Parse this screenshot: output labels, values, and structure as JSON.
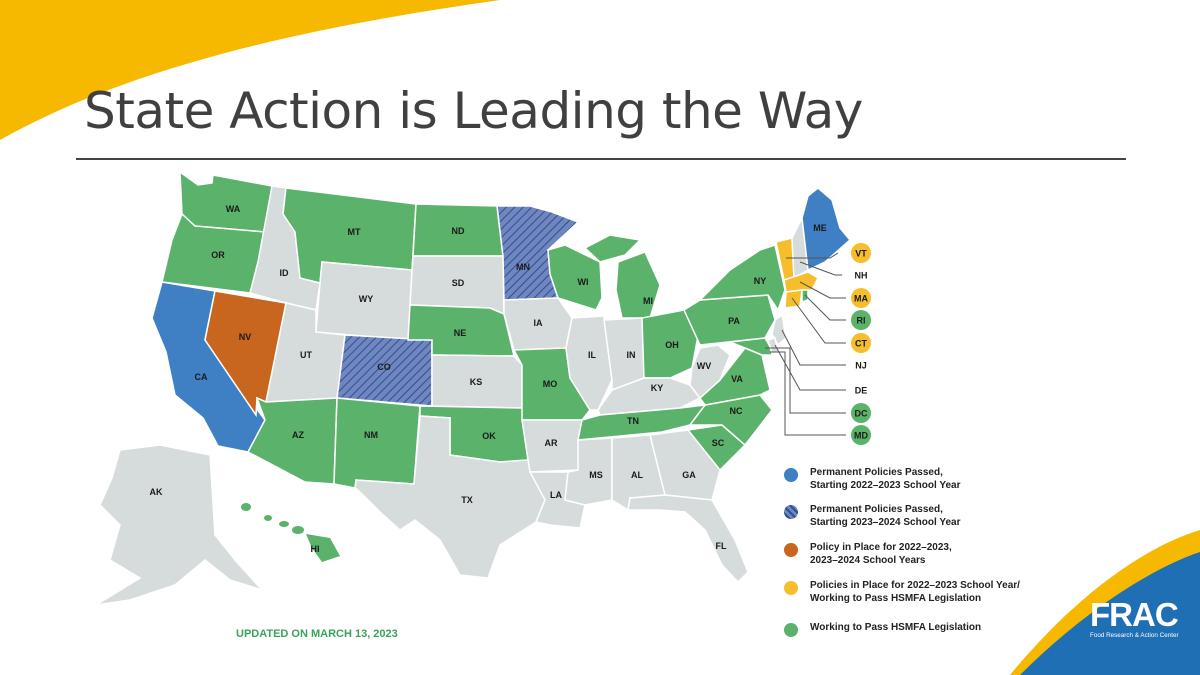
{
  "title": "State Action is Leading the Way",
  "updated": "UPDATED ON MARCH 13, 2023",
  "colors": {
    "blue": "#3f7fc4",
    "hatched": "#6f86bf",
    "orange": "#c8661f",
    "yellow": "#f6bd2c",
    "green": "#5bb26a",
    "gray": "#d6dcdb",
    "accent_yellow": "#f7b800",
    "accent_blue": "#1f6fb5"
  },
  "legend": [
    {
      "color": "blue",
      "line1": "Permanent Policies Passed,",
      "line2": "Starting 2022–2023 School Year"
    },
    {
      "color": "hatched",
      "line1": "Permanent Policies Passed,",
      "line2": "Starting 2023–2024 School Year"
    },
    {
      "color": "orange",
      "line1": "Policy in Place for 2022–2023,",
      "line2": "2023–2024 School Years"
    },
    {
      "color": "yellow",
      "line1": "Policies in Place for 2022–2023 School Year/",
      "line2": "Working to Pass HSMFA Legislation"
    },
    {
      "color": "green",
      "line1": "Working to Pass HSMFA Legislation",
      "line2": ""
    }
  ],
  "states": {
    "WA": "WA",
    "OR": "OR",
    "CA": "CA",
    "NV": "NV",
    "ID": "ID",
    "MT": "MT",
    "WY": "WY",
    "UT": "UT",
    "AZ": "AZ",
    "CO": "CO",
    "NM": "NM",
    "ND": "ND",
    "SD": "SD",
    "NE": "NE",
    "KS": "KS",
    "OK": "OK",
    "TX": "TX",
    "MN": "MN",
    "IA": "IA",
    "MO": "MO",
    "AR": "AR",
    "LA": "LA",
    "WI": "WI",
    "IL": "IL",
    "MI": "MI",
    "IN": "IN",
    "OH": "OH",
    "KY": "KY",
    "TN": "TN",
    "MS": "MS",
    "AL": "AL",
    "GA": "GA",
    "FL": "FL",
    "SC": "SC",
    "NC": "NC",
    "VA": "VA",
    "WV": "WV",
    "PA": "PA",
    "NY": "NY",
    "ME": "ME",
    "AK": "AK",
    "HI": "HI"
  },
  "callouts": [
    {
      "label": "VT",
      "color": "yellow"
    },
    {
      "label": "NH",
      "color": "none"
    },
    {
      "label": "MA",
      "color": "yellow"
    },
    {
      "label": "RI",
      "color": "green"
    },
    {
      "label": "CT",
      "color": "yellow"
    },
    {
      "label": "NJ",
      "color": "none"
    },
    {
      "label": "DE",
      "color": "none"
    },
    {
      "label": "DC",
      "color": "green"
    },
    {
      "label": "MD",
      "color": "green"
    }
  ],
  "logo": {
    "main": "FRAC",
    "sub": "Food Research & Action Center"
  }
}
